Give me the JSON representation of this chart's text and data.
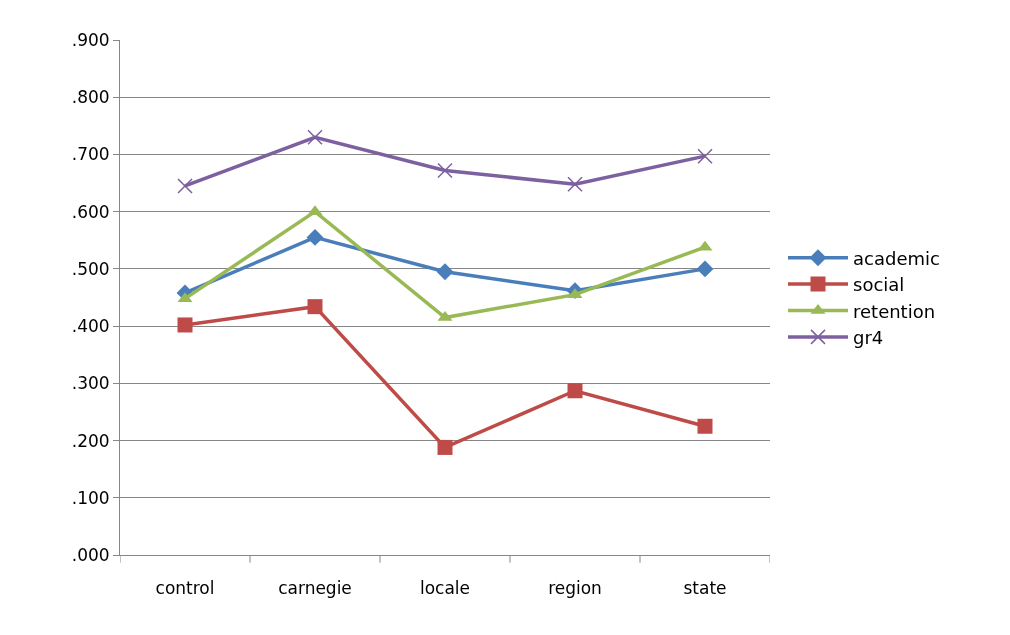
{
  "chart_data": {
    "type": "line",
    "categories": [
      "control",
      "carnegie",
      "locale",
      "region",
      "state"
    ],
    "series": [
      {
        "name": "academic",
        "color": "#4a7ebb",
        "marker": "diamond",
        "values": [
          0.458,
          0.555,
          0.495,
          0.462,
          0.5
        ]
      },
      {
        "name": "social",
        "color": "#be4b48",
        "marker": "square",
        "values": [
          0.402,
          0.434,
          0.188,
          0.287,
          0.225
        ]
      },
      {
        "name": "retention",
        "color": "#98b954",
        "marker": "triangle",
        "values": [
          0.448,
          0.6,
          0.415,
          0.455,
          0.538
        ]
      },
      {
        "name": "gr4",
        "color": "#7d60a0",
        "marker": "cross",
        "values": [
          0.645,
          0.73,
          0.672,
          0.648,
          0.697
        ]
      }
    ],
    "ylim": [
      0,
      0.9
    ],
    "yticks": [
      {
        "value": 0,
        "label": ".000"
      },
      {
        "value": 0.1,
        "label": ".100"
      },
      {
        "value": 0.2,
        "label": ".200"
      },
      {
        "value": 0.3,
        "label": ".300"
      },
      {
        "value": 0.4,
        "label": ".400"
      },
      {
        "value": 0.5,
        "label": ".500"
      },
      {
        "value": 0.6,
        "label": ".600"
      },
      {
        "value": 0.7,
        "label": ".700"
      },
      {
        "value": 0.8,
        "label": ".800"
      },
      {
        "value": 0.9,
        "label": ".900"
      }
    ],
    "grid": "y",
    "legend": "right",
    "line_style": "solid"
  }
}
